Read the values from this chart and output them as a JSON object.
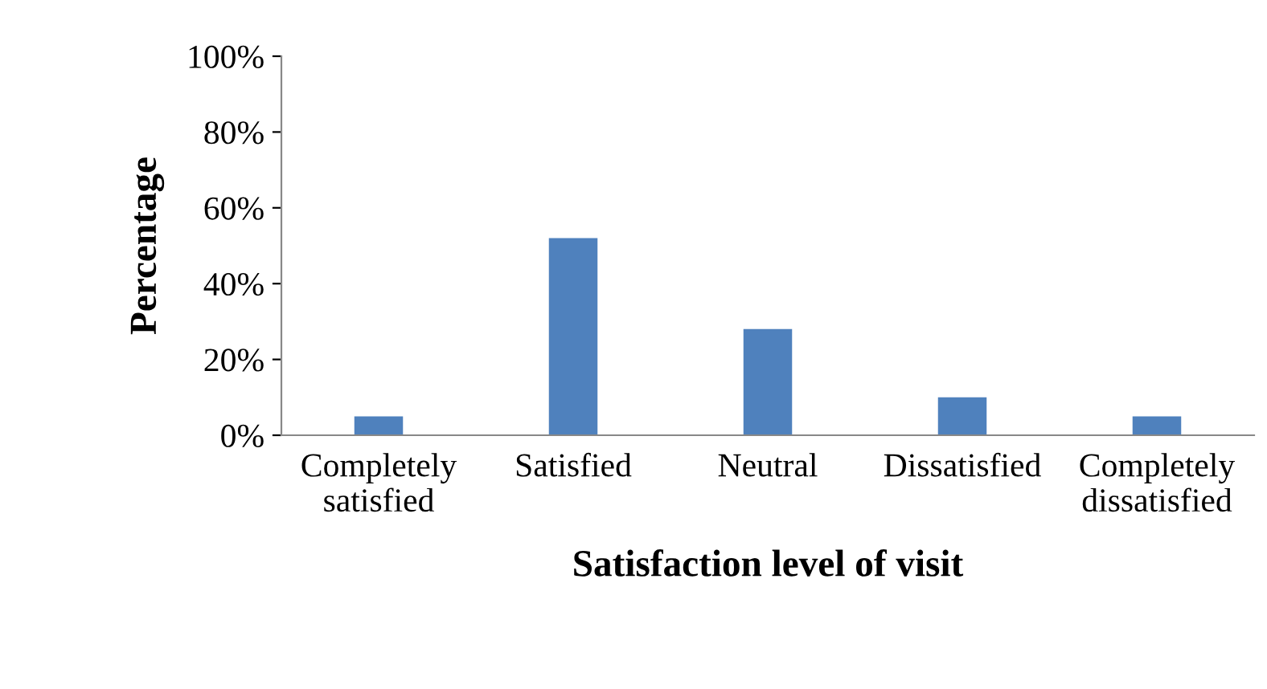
{
  "chart_data": {
    "type": "bar",
    "xlabel": "Satisfaction level of visit",
    "ylabel": "Percentage",
    "categories": [
      "Completely\nsatisfied",
      "Satisfied",
      "Neutral",
      "Dissatisfied",
      "Completely\ndissatisfied"
    ],
    "values": [
      5,
      52,
      28,
      10,
      5
    ],
    "color": "#4f81bd",
    "ylim": [
      0,
      100
    ],
    "yticks": [
      {
        "value": 0,
        "label": "0%"
      },
      {
        "value": 20,
        "label": "20%"
      },
      {
        "value": 40,
        "label": "40%"
      },
      {
        "value": 60,
        "label": "60%"
      },
      {
        "value": 80,
        "label": "80%"
      },
      {
        "value": 100,
        "label": "100%"
      }
    ],
    "grid": false,
    "legend": false
  }
}
